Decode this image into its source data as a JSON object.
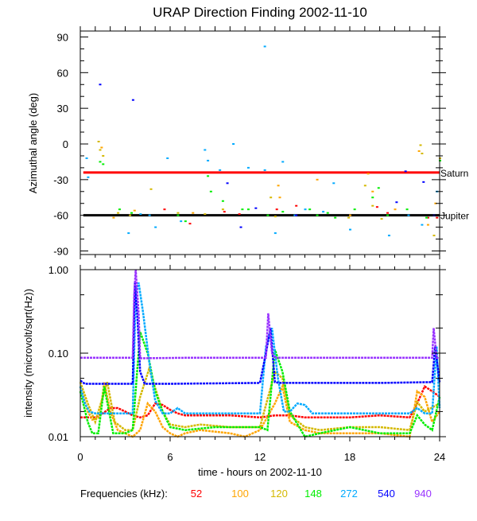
{
  "chart_data": [
    {
      "type": "scatter",
      "title": "URAP Direction Finding  2002-11-10",
      "ylabel": "Azimuthal angle (deg)",
      "xlim": [
        0,
        24
      ],
      "ylim": [
        -93,
        95
      ],
      "yticks": [
        "90",
        "60",
        "30",
        "0",
        "-30",
        "-60",
        "-90"
      ],
      "ytick_values": [
        90,
        60,
        30,
        0,
        -30,
        -60,
        -90
      ],
      "reference_lines": [
        {
          "name": "Saturn",
          "value": -24,
          "color": "#ff0000"
        },
        {
          "name": "Jupiter",
          "value": -60,
          "color": "#000000"
        }
      ],
      "series": [
        {
          "name": "52",
          "points": [
            [
              5.6,
              -55
            ],
            [
              7.3,
              -67
            ],
            [
              10.6,
              -59
            ],
            [
              13.1,
              -55
            ],
            [
              14.4,
              -52
            ],
            [
              19.8,
              -53
            ],
            [
              20.5,
              -58
            ],
            [
              23.2,
              -62
            ],
            [
              23.8,
              -62
            ],
            [
              9.6,
              -57
            ]
          ]
        },
        {
          "name": "100",
          "points": [
            [
              1.4,
              -3
            ],
            [
              2.2,
              -62
            ],
            [
              3.6,
              -56
            ],
            [
              7.5,
              -58
            ],
            [
              13.2,
              -35
            ],
            [
              13.3,
              -45
            ],
            [
              15.8,
              -30
            ],
            [
              18.0,
              -60
            ],
            [
              19.2,
              -25
            ],
            [
              19.5,
              -40
            ],
            [
              21.0,
              -55
            ],
            [
              22.6,
              -6
            ],
            [
              23.2,
              -68
            ],
            [
              23.7,
              -50
            ]
          ]
        },
        {
          "name": "120",
          "points": [
            [
              1.2,
              2
            ],
            [
              1.3,
              -5
            ],
            [
              1.5,
              -10
            ],
            [
              2.5,
              -58
            ],
            [
              3.3,
              -60
            ],
            [
              4.7,
              -38
            ],
            [
              6.5,
              -58
            ],
            [
              8.3,
              -59
            ],
            [
              9.5,
              -55
            ],
            [
              12.7,
              -45
            ],
            [
              13.0,
              -61
            ],
            [
              17.9,
              -62
            ],
            [
              19.0,
              -35
            ],
            [
              19.5,
              -52
            ],
            [
              20.1,
              -63
            ],
            [
              22.7,
              -1
            ],
            [
              22.8,
              -8
            ],
            [
              23.6,
              -77
            ],
            [
              24.0,
              -12
            ]
          ]
        },
        {
          "name": "148",
          "points": [
            [
              1.3,
              -15
            ],
            [
              1.5,
              -17
            ],
            [
              2.6,
              -55
            ],
            [
              3.4,
              -58
            ],
            [
              6.5,
              -60
            ],
            [
              7.0,
              -65
            ],
            [
              8.5,
              -27
            ],
            [
              8.7,
              -40
            ],
            [
              9.5,
              -48
            ],
            [
              10.8,
              -55
            ],
            [
              11.2,
              -55
            ],
            [
              13.5,
              -57
            ],
            [
              15.3,
              -55
            ],
            [
              15.8,
              -60
            ],
            [
              17.0,
              -62
            ],
            [
              18.3,
              -55
            ],
            [
              19.5,
              -45
            ],
            [
              19.9,
              -37
            ],
            [
              20.5,
              -60
            ],
            [
              21.8,
              -55
            ],
            [
              23.1,
              -62
            ],
            [
              24.0,
              -14
            ],
            [
              16.5,
              -58
            ],
            [
              12.5,
              -60
            ]
          ]
        },
        {
          "name": "272",
          "points": [
            [
              0.4,
              -12
            ],
            [
              0.5,
              -28
            ],
            [
              3.2,
              -75
            ],
            [
              4.0,
              -59
            ],
            [
              4.6,
              -60
            ],
            [
              5.0,
              -70
            ],
            [
              5.8,
              -12
            ],
            [
              6.7,
              -65
            ],
            [
              8.3,
              -5
            ],
            [
              8.5,
              -14
            ],
            [
              9.3,
              -22
            ],
            [
              10.2,
              0
            ],
            [
              11.2,
              -20
            ],
            [
              12.3,
              -22
            ],
            [
              13.0,
              -75
            ],
            [
              13.5,
              -15
            ],
            [
              15.0,
              -55
            ],
            [
              16.2,
              -57
            ],
            [
              16.9,
              -33
            ],
            [
              18.0,
              -72
            ],
            [
              20.6,
              -77
            ],
            [
              21.9,
              -60
            ],
            [
              22.8,
              -68
            ],
            [
              23.8,
              -40
            ],
            [
              14.3,
              -60
            ],
            [
              12.3,
              82
            ]
          ]
        },
        {
          "name": "540",
          "points": [
            [
              1.3,
              50
            ],
            [
              3.5,
              37
            ],
            [
              9.8,
              -33
            ],
            [
              10.7,
              -70
            ],
            [
              11.7,
              -54
            ],
            [
              14.4,
              -60
            ],
            [
              21.1,
              -49
            ],
            [
              21.7,
              -23
            ],
            [
              22.9,
              -32
            ],
            [
              23.6,
              -60
            ]
          ]
        },
        {
          "name": "940",
          "points": []
        }
      ]
    },
    {
      "type": "line",
      "ylabel": "intensity (microvolt/sqrt(Hz))",
      "xlabel": "time - hours on 2002-11-10",
      "xlim": [
        0,
        24
      ],
      "ylim": [
        0.01,
        1.0
      ],
      "yscale": "log",
      "xticks": [
        "0",
        "6",
        "12",
        "18",
        "24"
      ],
      "xtick_values": [
        0,
        6,
        12,
        18,
        24
      ],
      "yticks": [
        "1.00",
        "0.10",
        "0.01"
      ],
      "ytick_values": [
        1.0,
        0.1,
        0.01
      ],
      "legend_label": "Frequencies (kHz):",
      "series": [
        {
          "name": "52",
          "color": "#ff0000",
          "x": [
            0,
            1,
            1.5,
            2,
            2.5,
            3,
            3.5,
            4,
            4.5,
            5,
            5.5,
            6,
            6.5,
            7,
            8,
            10,
            12,
            13,
            14,
            15,
            16,
            18,
            20,
            22,
            22.5,
            23,
            23.5,
            24
          ],
          "y": [
            0.017,
            0.017,
            0.019,
            0.022,
            0.022,
            0.02,
            0.018,
            0.017,
            0.018,
            0.025,
            0.024,
            0.021,
            0.019,
            0.018,
            0.018,
            0.018,
            0.017,
            0.018,
            0.018,
            0.017,
            0.017,
            0.017,
            0.018,
            0.017,
            0.025,
            0.04,
            0.035,
            0.03
          ]
        },
        {
          "name": "100",
          "color": "#ffa500",
          "x": [
            0,
            0.5,
            0.8,
            1.3,
            1.6,
            2.0,
            2.5,
            3,
            3.5,
            4,
            4.5,
            5,
            5.5,
            6,
            6.5,
            7,
            8,
            10,
            11,
            12,
            13,
            13.5,
            14,
            15,
            16,
            18,
            20,
            22,
            22.5,
            23,
            23.5,
            24
          ],
          "y": [
            0.04,
            0.02,
            0.016,
            0.017,
            0.045,
            0.02,
            0.012,
            0.011,
            0.01,
            0.012,
            0.025,
            0.02,
            0.013,
            0.011,
            0.01,
            0.011,
            0.012,
            0.011,
            0.01,
            0.012,
            0.025,
            0.04,
            0.015,
            0.012,
            0.011,
            0.011,
            0.011,
            0.01,
            0.035,
            0.03,
            0.015,
            0.02
          ]
        },
        {
          "name": "120",
          "color": "#d4b800",
          "x": [
            0,
            0.5,
            1,
            1.5,
            1.8,
            2.3,
            3,
            3.5,
            4,
            4.6,
            5.5,
            6,
            7,
            8,
            10,
            12,
            13,
            13.5,
            14,
            15,
            16,
            18,
            20,
            22,
            22.5,
            23,
            24
          ],
          "y": [
            0.045,
            0.025,
            0.015,
            0.03,
            0.045,
            0.015,
            0.012,
            0.012,
            0.03,
            0.065,
            0.02,
            0.014,
            0.013,
            0.014,
            0.013,
            0.013,
            0.06,
            0.05,
            0.018,
            0.013,
            0.012,
            0.013,
            0.013,
            0.012,
            0.026,
            0.02,
            0.025
          ]
        },
        {
          "name": "148",
          "color": "#00ee00",
          "x": [
            0,
            0.5,
            0.8,
            1.2,
            1.6,
            2.2,
            3,
            3.5,
            4,
            4.5,
            5,
            5.5,
            6,
            7,
            9,
            12,
            12.5,
            13,
            13.5,
            14,
            15,
            16,
            18,
            20,
            22,
            22.5,
            23,
            23.5,
            24
          ],
          "y": [
            0.035,
            0.015,
            0.011,
            0.011,
            0.04,
            0.011,
            0.011,
            0.012,
            0.18,
            0.1,
            0.035,
            0.02,
            0.013,
            0.012,
            0.013,
            0.013,
            0.012,
            0.11,
            0.06,
            0.02,
            0.01,
            0.011,
            0.013,
            0.011,
            0.011,
            0.018,
            0.014,
            0.012,
            0.03
          ]
        },
        {
          "name": "272",
          "color": "#00aaff",
          "x": [
            0,
            0.3,
            0.6,
            1,
            2,
            3,
            3.5,
            3.7,
            3.9,
            4.2,
            4.6,
            5,
            5.5,
            6,
            6.5,
            7,
            10,
            12,
            12.4,
            12.8,
            13.2,
            13.6,
            14,
            14.5,
            15,
            15.5,
            16,
            20,
            22,
            22.5,
            23,
            23.5,
            23.8,
            24
          ],
          "y": [
            0.04,
            0.025,
            0.02,
            0.019,
            0.019,
            0.019,
            0.019,
            0.5,
            0.7,
            0.3,
            0.08,
            0.027,
            0.019,
            0.019,
            0.022,
            0.019,
            0.019,
            0.019,
            0.12,
            0.2,
            0.05,
            0.02,
            0.02,
            0.025,
            0.024,
            0.019,
            0.019,
            0.019,
            0.019,
            0.022,
            0.019,
            0.019,
            0.12,
            0.022
          ]
        },
        {
          "name": "540",
          "color": "#0000ff",
          "x": [
            0,
            0.3,
            1,
            3.5,
            3.65,
            3.8,
            4.0,
            4.3,
            6,
            12,
            12.4,
            12.7,
            13,
            13.3,
            20,
            23.5,
            23.7,
            24
          ],
          "y": [
            0.047,
            0.043,
            0.043,
            0.043,
            0.7,
            0.3,
            0.06,
            0.043,
            0.043,
            0.044,
            0.1,
            0.2,
            0.045,
            0.044,
            0.044,
            0.045,
            0.12,
            0.045
          ]
        },
        {
          "name": "940",
          "color": "#9933ff",
          "x": [
            0,
            3.5,
            3.6,
            3.7,
            3.9,
            4.0,
            7,
            12.4,
            12.55,
            12.8,
            13,
            23.5,
            23.6,
            23.8,
            24
          ],
          "y": [
            0.088,
            0.088,
            0.5,
            1.0,
            0.3,
            0.087,
            0.088,
            0.088,
            0.3,
            0.1,
            0.088,
            0.088,
            0.2,
            0.088,
            0.087
          ]
        }
      ]
    }
  ]
}
